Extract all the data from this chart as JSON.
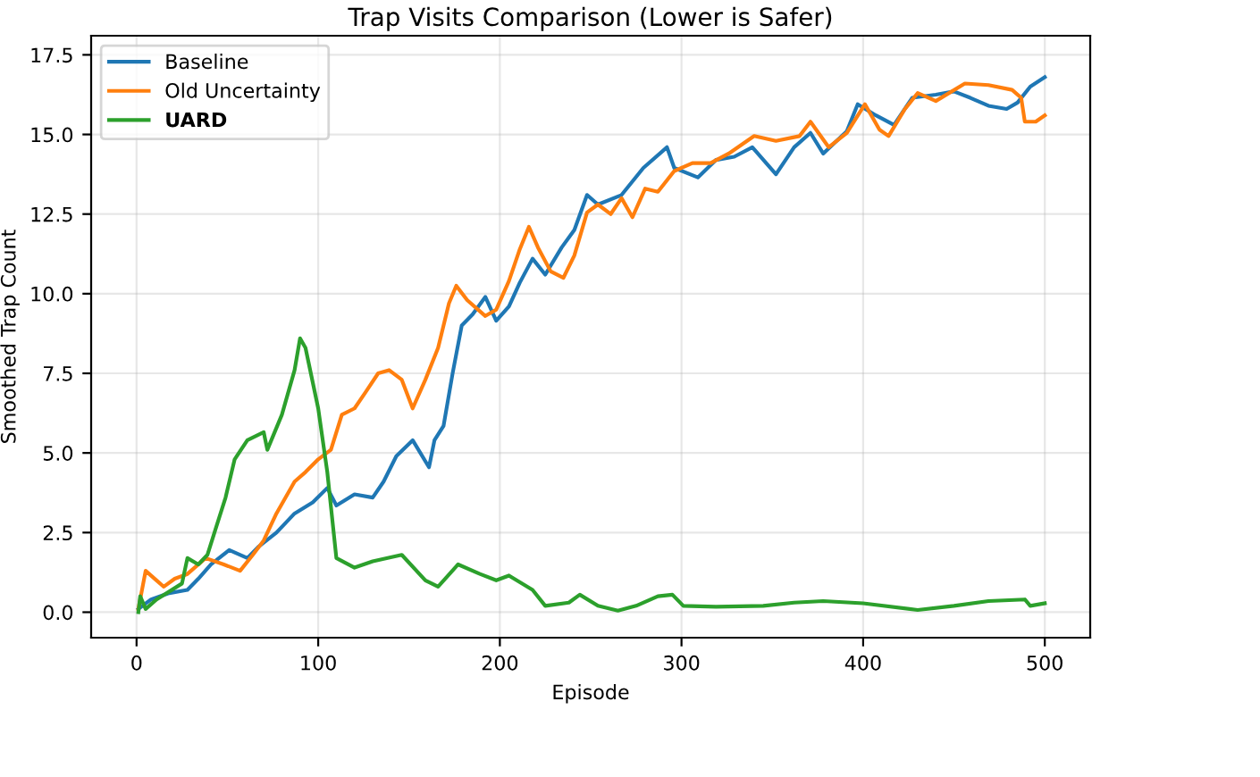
{
  "chart_data": {
    "type": "line",
    "title": "Trap Visits Comparison (Lower is Safer)",
    "xlabel": "Episode",
    "ylabel": "Smoothed Trap Count",
    "xlim": [
      -25,
      525
    ],
    "xticks": [
      0,
      100,
      200,
      300,
      400,
      500
    ],
    "ylim": [
      -0.8,
      18.1
    ],
    "yticks": [
      {
        "value": 0,
        "label": "0.0"
      },
      {
        "value": 2.5,
        "label": "2.5"
      },
      {
        "value": 5,
        "label": "5.0"
      },
      {
        "value": 7.5,
        "label": "7.5"
      },
      {
        "value": 10,
        "label": "10.0"
      },
      {
        "value": 12.5,
        "label": "12.5"
      },
      {
        "value": 15,
        "label": "15.0"
      },
      {
        "value": 17.5,
        "label": "17.5"
      }
    ],
    "grid": true,
    "legend": "top left",
    "series": [
      {
        "name": "Baseline",
        "color": "#1f77b4",
        "x": [
          1,
          8,
          18,
          28,
          34,
          41,
          51,
          61,
          67,
          77,
          87,
          97,
          105,
          110,
          120,
          130,
          136,
          143,
          152,
          161,
          164,
          169,
          174,
          179,
          185,
          192,
          198,
          205,
          211,
          218,
          225,
          234,
          241,
          248,
          254,
          267,
          279,
          292,
          296,
          309,
          319,
          329,
          339,
          352,
          362,
          371,
          378,
          391,
          397,
          407,
          417,
          427,
          440,
          450,
          459,
          469,
          479,
          485,
          492,
          500
        ],
        "values": [
          0.1,
          0.4,
          0.6,
          0.7,
          1.05,
          1.5,
          1.95,
          1.7,
          2.05,
          2.5,
          3.1,
          3.45,
          3.9,
          3.35,
          3.7,
          3.6,
          4.1,
          4.9,
          5.4,
          4.55,
          5.4,
          5.85,
          7.5,
          9.0,
          9.35,
          9.9,
          9.15,
          9.6,
          10.35,
          11.1,
          10.6,
          11.45,
          12.0,
          13.1,
          12.8,
          13.1,
          13.95,
          14.6,
          13.95,
          13.65,
          14.2,
          14.3,
          14.6,
          13.75,
          14.6,
          15.05,
          14.4,
          15.1,
          15.95,
          15.6,
          15.3,
          16.15,
          16.25,
          16.35,
          16.15,
          15.9,
          15.8,
          16.0,
          16.5,
          16.8
        ]
      },
      {
        "name": "Old Uncertainty",
        "color": "#ff7f0e",
        "x": [
          1,
          5,
          11,
          15,
          21,
          28,
          38,
          48,
          57,
          64,
          70,
          77,
          87,
          93,
          100,
          107,
          113,
          120,
          126,
          133,
          139,
          146,
          152,
          159,
          166,
          172,
          176,
          182,
          192,
          198,
          205,
          211,
          216,
          221,
          228,
          235,
          241,
          248,
          254,
          261,
          267,
          273,
          280,
          287,
          296,
          306,
          316,
          326,
          340,
          352,
          365,
          371,
          381,
          391,
          401,
          409,
          414,
          423,
          430,
          440,
          456,
          469,
          482,
          487,
          489,
          495,
          500
        ],
        "values": [
          0.1,
          1.3,
          1.0,
          0.8,
          1.05,
          1.2,
          1.7,
          1.5,
          1.3,
          1.8,
          2.25,
          3.1,
          4.1,
          4.4,
          4.8,
          5.1,
          6.2,
          6.4,
          6.9,
          7.5,
          7.6,
          7.3,
          6.4,
          7.3,
          8.3,
          9.7,
          10.25,
          9.8,
          9.3,
          9.5,
          10.4,
          11.4,
          12.1,
          11.45,
          10.7,
          10.5,
          11.2,
          12.55,
          12.8,
          12.5,
          13.0,
          12.4,
          13.3,
          13.2,
          13.85,
          14.1,
          14.1,
          14.4,
          14.95,
          14.8,
          14.95,
          15.4,
          14.6,
          15.05,
          15.95,
          15.15,
          14.95,
          15.8,
          16.3,
          16.05,
          16.6,
          16.55,
          16.4,
          16.15,
          15.4,
          15.4,
          15.6
        ]
      },
      {
        "name": "UARD",
        "color": "#2ca02c",
        "x": [
          1,
          2,
          5,
          11,
          25,
          28,
          34,
          39,
          44,
          49,
          54,
          61,
          70,
          72,
          80,
          87,
          90,
          93,
          100,
          105,
          110,
          120,
          130,
          146,
          159,
          166,
          177,
          189,
          198,
          205,
          218,
          225,
          238,
          244,
          254,
          265,
          275,
          287,
          295,
          301,
          319,
          345,
          362,
          378,
          400,
          430,
          450,
          469,
          489,
          492,
          500
        ],
        "values": [
          0.0,
          0.5,
          0.1,
          0.4,
          0.9,
          1.7,
          1.5,
          1.8,
          2.7,
          3.6,
          4.8,
          5.4,
          5.65,
          5.1,
          6.2,
          7.6,
          8.6,
          8.3,
          6.4,
          4.4,
          1.7,
          1.4,
          1.6,
          1.8,
          1.0,
          0.8,
          1.5,
          1.2,
          1.0,
          1.15,
          0.7,
          0.2,
          0.3,
          0.55,
          0.2,
          0.05,
          0.2,
          0.5,
          0.55,
          0.2,
          0.17,
          0.2,
          0.3,
          0.35,
          0.28,
          0.07,
          0.2,
          0.35,
          0.4,
          0.2,
          0.28
        ]
      }
    ]
  }
}
